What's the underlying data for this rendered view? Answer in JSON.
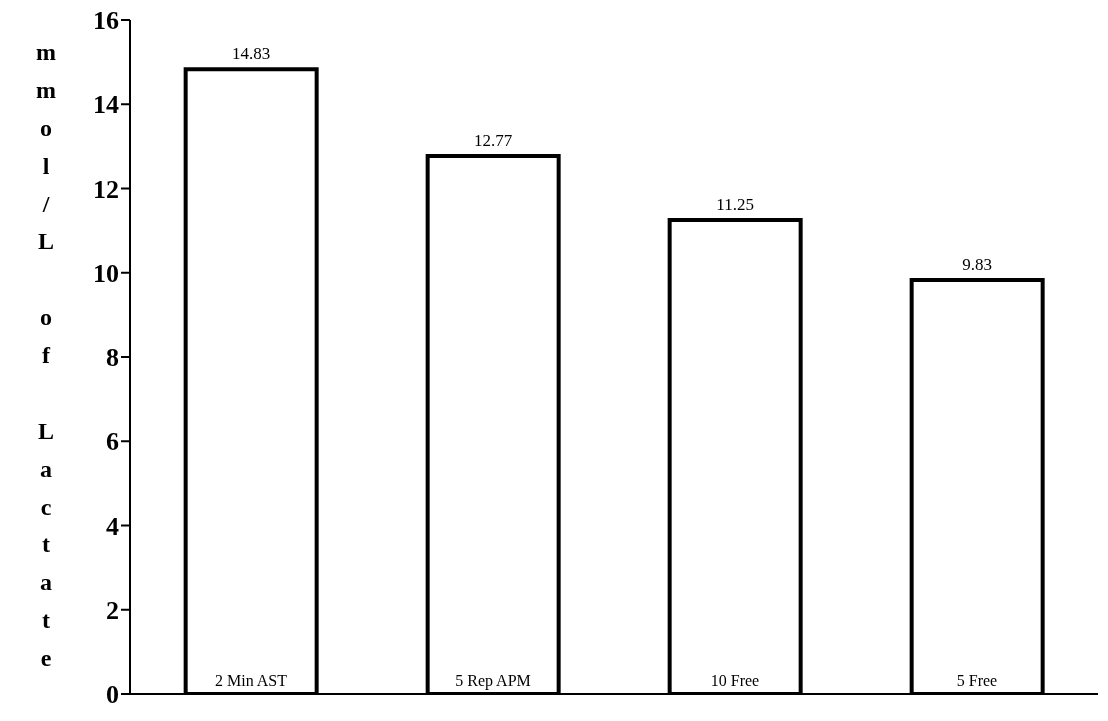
{
  "chart_data": {
    "type": "bar",
    "ylabel": "mmol/L of Lactate",
    "categories": [
      "2 Min AST",
      "5 Rep APM",
      "10 Free",
      "5 Free"
    ],
    "values": [
      14.83,
      12.77,
      11.25,
      9.83
    ],
    "color": "#ffffff",
    "data_labels": true,
    "ylim": [
      0,
      16
    ],
    "yticks": [
      0,
      2,
      4,
      6,
      8,
      10,
      12,
      14,
      16
    ],
    "grid": false,
    "legend": false
  }
}
